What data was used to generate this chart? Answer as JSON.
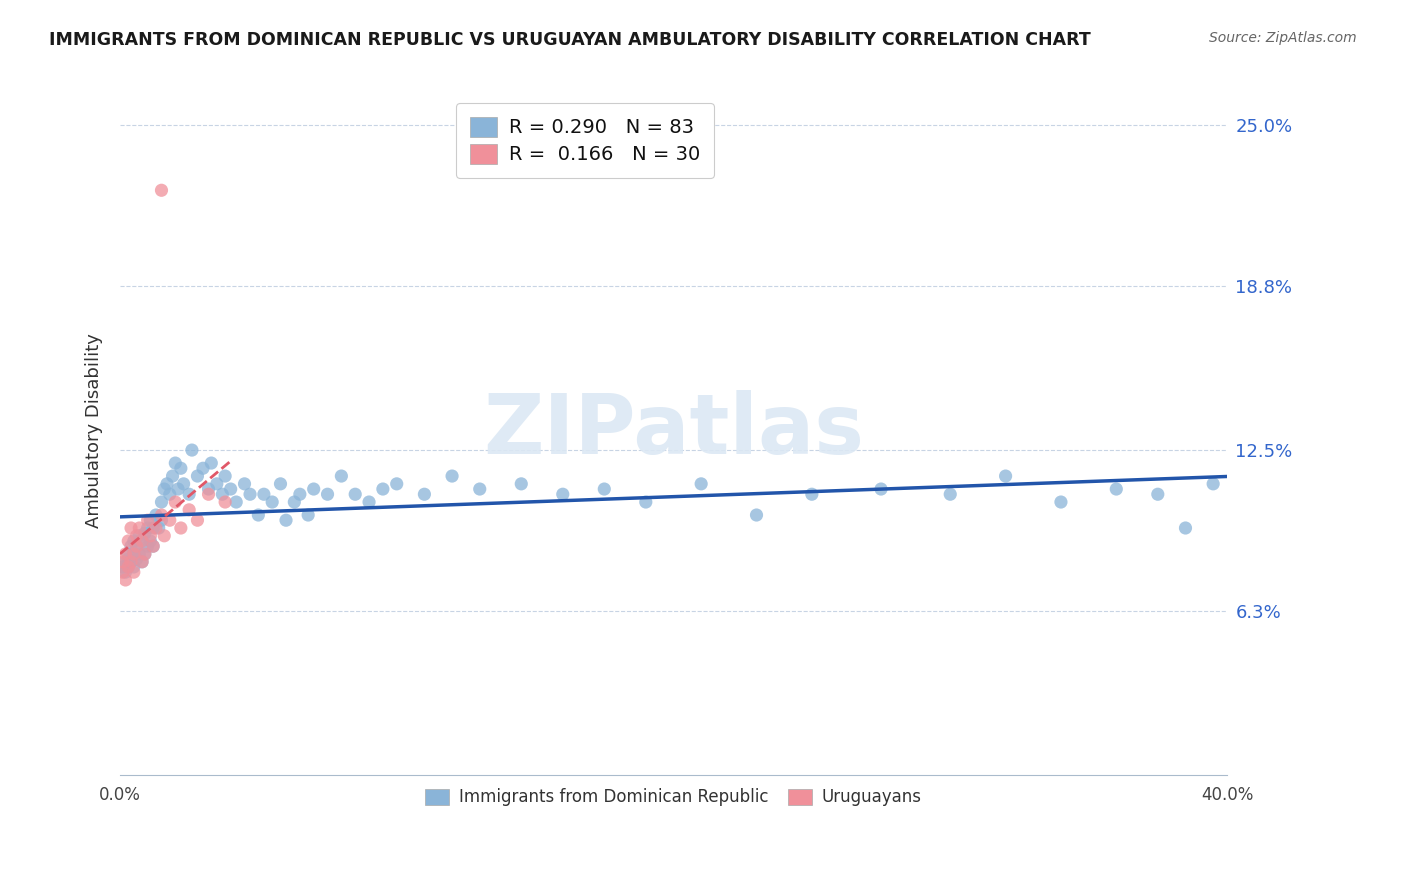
{
  "title": "IMMIGRANTS FROM DOMINICAN REPUBLIC VS URUGUAYAN AMBULATORY DISABILITY CORRELATION CHART",
  "source": "Source: ZipAtlas.com",
  "ylabel": "Ambulatory Disability",
  "ytick_labels": [
    "6.3%",
    "12.5%",
    "18.8%",
    "25.0%"
  ],
  "ytick_values": [
    0.063,
    0.125,
    0.188,
    0.25
  ],
  "xlim": [
    0.0,
    0.4
  ],
  "ylim": [
    0.0,
    0.265
  ],
  "blue_scatter_color": "#8ab4d8",
  "pink_scatter_color": "#f0909a",
  "blue_line_color": "#2255aa",
  "pink_line_color": "#e05868",
  "grid_color": "#c8d4e4",
  "background_color": "#ffffff",
  "watermark_color": "#dce8f4",
  "blue_R": 0.29,
  "blue_N": 83,
  "pink_R": 0.166,
  "pink_N": 30,
  "blue_x": [
    0.001,
    0.002,
    0.002,
    0.003,
    0.003,
    0.003,
    0.004,
    0.004,
    0.005,
    0.005,
    0.005,
    0.006,
    0.006,
    0.007,
    0.007,
    0.008,
    0.008,
    0.009,
    0.009,
    0.01,
    0.01,
    0.011,
    0.011,
    0.012,
    0.012,
    0.013,
    0.014,
    0.015,
    0.015,
    0.016,
    0.017,
    0.018,
    0.019,
    0.02,
    0.021,
    0.022,
    0.023,
    0.025,
    0.026,
    0.028,
    0.03,
    0.032,
    0.033,
    0.035,
    0.037,
    0.038,
    0.04,
    0.042,
    0.045,
    0.047,
    0.05,
    0.052,
    0.055,
    0.058,
    0.06,
    0.063,
    0.065,
    0.068,
    0.07,
    0.075,
    0.08,
    0.085,
    0.09,
    0.095,
    0.1,
    0.11,
    0.12,
    0.13,
    0.145,
    0.16,
    0.175,
    0.19,
    0.21,
    0.23,
    0.25,
    0.275,
    0.3,
    0.32,
    0.34,
    0.36,
    0.375,
    0.385,
    0.395
  ],
  "blue_y": [
    0.08,
    0.078,
    0.082,
    0.083,
    0.08,
    0.085,
    0.082,
    0.088,
    0.08,
    0.085,
    0.09,
    0.083,
    0.088,
    0.085,
    0.092,
    0.082,
    0.09,
    0.085,
    0.093,
    0.088,
    0.095,
    0.09,
    0.098,
    0.088,
    0.095,
    0.1,
    0.095,
    0.105,
    0.098,
    0.11,
    0.112,
    0.108,
    0.115,
    0.12,
    0.11,
    0.118,
    0.112,
    0.108,
    0.125,
    0.115,
    0.118,
    0.11,
    0.12,
    0.112,
    0.108,
    0.115,
    0.11,
    0.105,
    0.112,
    0.108,
    0.1,
    0.108,
    0.105,
    0.112,
    0.098,
    0.105,
    0.108,
    0.1,
    0.11,
    0.108,
    0.115,
    0.108,
    0.105,
    0.11,
    0.112,
    0.108,
    0.115,
    0.11,
    0.112,
    0.108,
    0.11,
    0.105,
    0.112,
    0.1,
    0.108,
    0.11,
    0.108,
    0.115,
    0.105,
    0.11,
    0.108,
    0.095,
    0.112
  ],
  "pink_x": [
    0.001,
    0.001,
    0.002,
    0.002,
    0.003,
    0.003,
    0.004,
    0.004,
    0.005,
    0.005,
    0.006,
    0.006,
    0.007,
    0.008,
    0.008,
    0.009,
    0.01,
    0.011,
    0.012,
    0.013,
    0.015,
    0.016,
    0.018,
    0.02,
    0.022,
    0.025,
    0.028,
    0.032,
    0.038,
    0.015
  ],
  "pink_y": [
    0.078,
    0.082,
    0.075,
    0.085,
    0.08,
    0.09,
    0.082,
    0.095,
    0.085,
    0.078,
    0.092,
    0.088,
    0.095,
    0.082,
    0.09,
    0.085,
    0.098,
    0.092,
    0.088,
    0.095,
    0.1,
    0.092,
    0.098,
    0.105,
    0.095,
    0.102,
    0.098,
    0.108,
    0.105,
    0.225
  ]
}
